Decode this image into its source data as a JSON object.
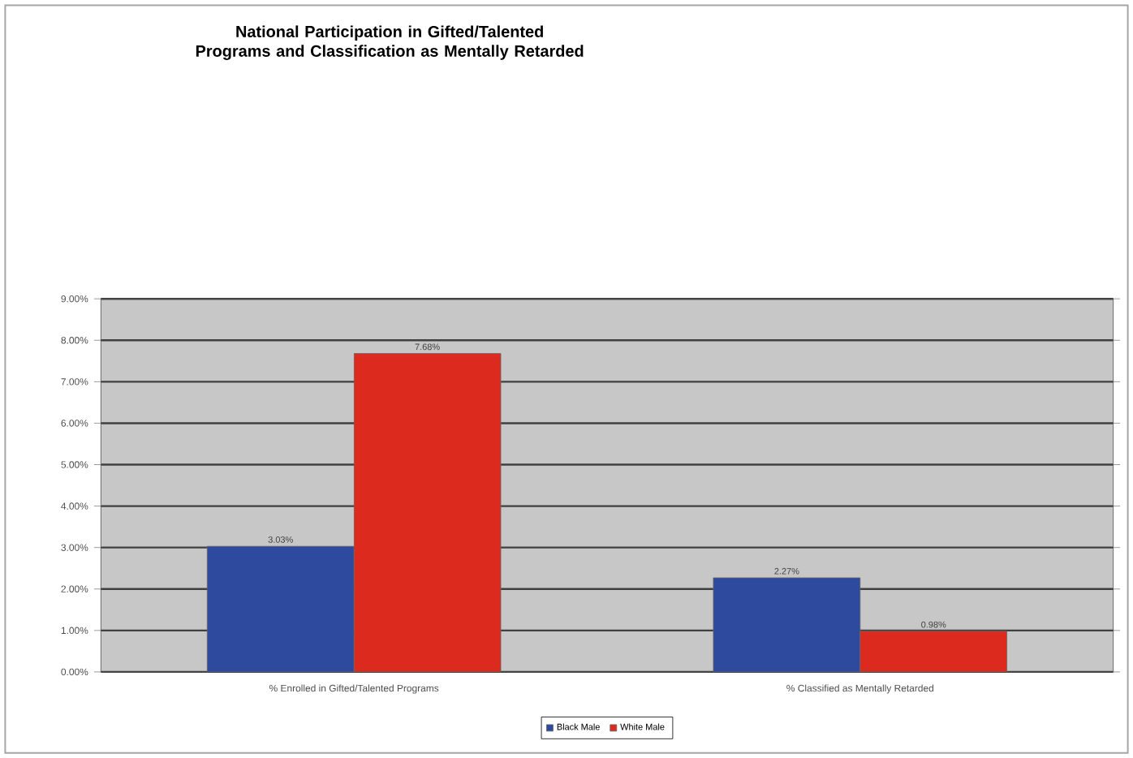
{
  "chart_data": {
    "type": "bar",
    "title": "National Participation in Gifted/Talented Programs and Classification as Mentally Retarded",
    "categories": [
      "% Enrolled in Gifted/Talented Programs",
      "% Classified as Mentally Retarded"
    ],
    "series": [
      {
        "name": "Black Male",
        "color": "#2e4a9e",
        "values": [
          3.03,
          2.27
        ],
        "value_labels": [
          "3.03%",
          "2.27%"
        ]
      },
      {
        "name": "White Male",
        "color": "#dc2a1e",
        "values": [
          7.68,
          0.98
        ],
        "value_labels": [
          "7.68%",
          "0.98%"
        ]
      }
    ],
    "ylim": [
      0,
      9
    ],
    "yticks": [
      {
        "value": 0,
        "label": "0.00%"
      },
      {
        "value": 1,
        "label": "1.00%"
      },
      {
        "value": 2,
        "label": "2.00%"
      },
      {
        "value": 3,
        "label": "3.00%"
      },
      {
        "value": 4,
        "label": "4.00%"
      },
      {
        "value": 5,
        "label": "5.00%"
      },
      {
        "value": 6,
        "label": "6.00%"
      },
      {
        "value": 7,
        "label": "7.00%"
      },
      {
        "value": 8,
        "label": "8.00%"
      },
      {
        "value": 9,
        "label": "9.00%"
      }
    ],
    "grid": "y",
    "legend": "bottom"
  }
}
